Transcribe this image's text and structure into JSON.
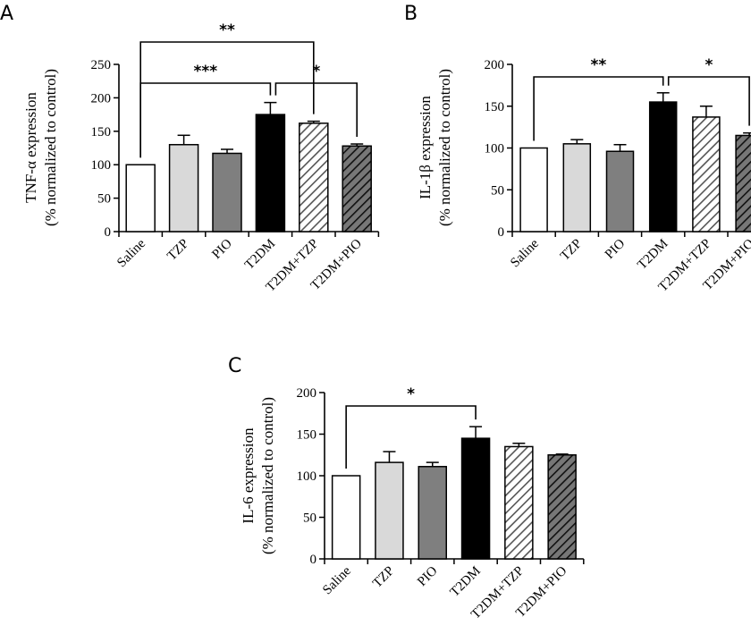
{
  "colors": {
    "saline": "#ffffff",
    "tzp": "#d9d9d9",
    "pio": "#7f7f7f",
    "t2dm": "#000000",
    "hatch_light_bg": "#ffffff",
    "hatch_light_line": "#555555",
    "hatch_dark_bg": "#777777",
    "hatch_dark_line": "#111111",
    "axis": "#000000"
  },
  "chart_data": [
    {
      "panel": "A",
      "type": "bar",
      "ylabel_line1": "TNF-α expression",
      "ylabel_line2": "(% normalized to control)",
      "ylim": [
        0,
        250
      ],
      "yticks": [
        0,
        50,
        100,
        150,
        200,
        250
      ],
      "categories": [
        "Saline",
        "TZP",
        "PIO",
        "T2DM",
        "T2DM+TZP",
        "T2DM+PIO"
      ],
      "values": [
        100,
        130,
        117,
        175,
        162,
        128
      ],
      "errors": [
        0,
        14,
        6,
        18,
        3,
        3
      ],
      "significance": [
        {
          "from": 0,
          "to": 3,
          "label": "***"
        },
        {
          "from": 0,
          "to": 4,
          "label": "**"
        },
        {
          "from": 3,
          "to": 5,
          "label": "*"
        }
      ]
    },
    {
      "panel": "B",
      "type": "bar",
      "ylabel_line1": "IL-1β expression",
      "ylabel_line2": "(% normalized to control)",
      "ylim": [
        0,
        200
      ],
      "yticks": [
        0,
        50,
        100,
        150,
        200
      ],
      "categories": [
        "Saline",
        "TZP",
        "PIO",
        "T2DM",
        "T2DM+TZP",
        "T2DM+PIO"
      ],
      "values": [
        100,
        105,
        96,
        155,
        137,
        115
      ],
      "errors": [
        0,
        5,
        8,
        11,
        13,
        3
      ],
      "significance": [
        {
          "from": 0,
          "to": 3,
          "label": "**"
        },
        {
          "from": 3,
          "to": 5,
          "label": "*"
        }
      ]
    },
    {
      "panel": "C",
      "type": "bar",
      "ylabel_line1": "IL-6 expression",
      "ylabel_line2": "(% normalized to control)",
      "ylim": [
        0,
        200
      ],
      "yticks": [
        0,
        50,
        100,
        150,
        200
      ],
      "categories": [
        "Saline",
        "TZP",
        "PIO",
        "T2DM",
        "T2DM+TZP",
        "T2DM+PIO"
      ],
      "values": [
        100,
        116,
        111,
        145,
        135,
        125
      ],
      "errors": [
        0,
        13,
        5,
        14,
        4,
        1
      ],
      "significance": [
        {
          "from": 0,
          "to": 3,
          "label": "*"
        }
      ]
    }
  ]
}
